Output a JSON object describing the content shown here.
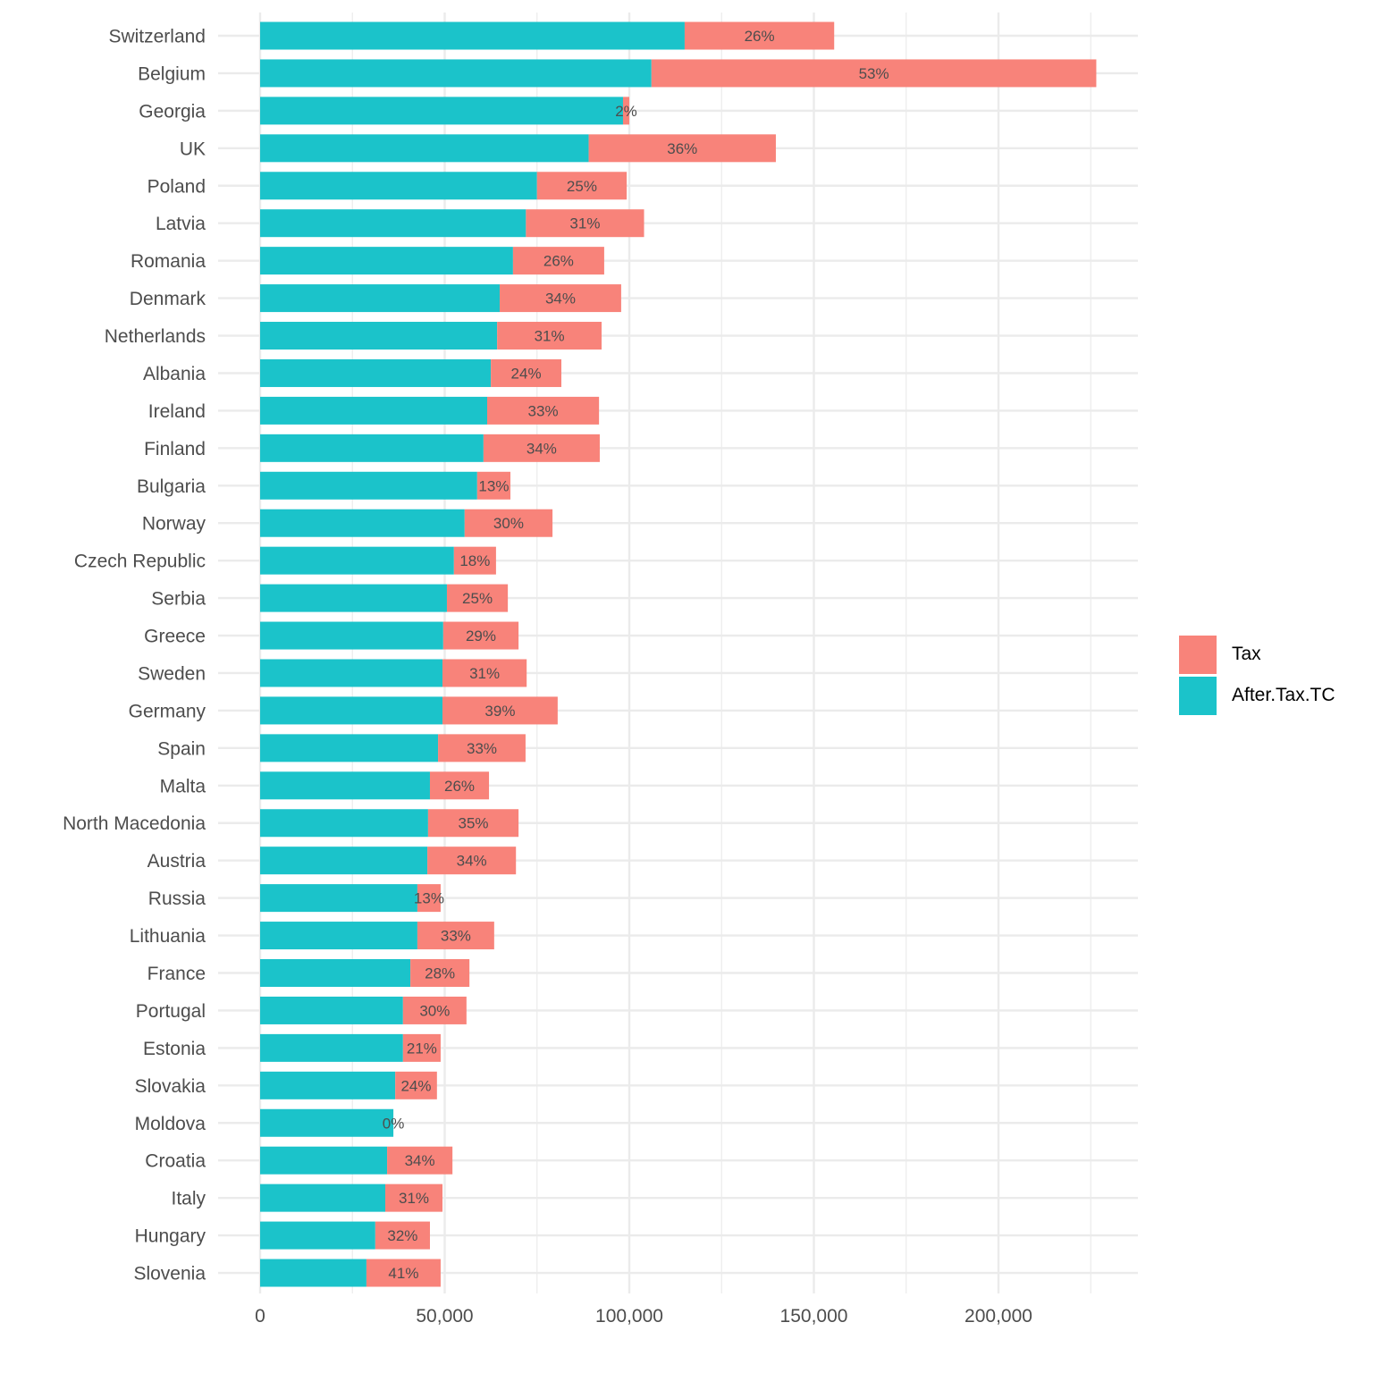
{
  "chart_data": {
    "type": "bar",
    "orientation": "horizontal",
    "stacked": true,
    "title": "",
    "xlabel": "",
    "ylabel": "",
    "xlim": [
      0,
      237000
    ],
    "x_ticks": [
      0,
      50000,
      100000,
      150000,
      200000
    ],
    "x_tick_labels": [
      "0",
      "50,000",
      "100,000",
      "150,000",
      "200,000"
    ],
    "grid": true,
    "legend_position": "right",
    "categories": [
      "Switzerland",
      "Belgium",
      "Georgia",
      "UK",
      "Poland",
      "Latvia",
      "Romania",
      "Denmark",
      "Netherlands",
      "Albania",
      "Ireland",
      "Finland",
      "Bulgaria",
      "Norway",
      "Czech Republic",
      "Serbia",
      "Greece",
      "Sweden",
      "Germany",
      "Spain",
      "Malta",
      "North Macedonia",
      "Austria",
      "Russia",
      "Lithuania",
      "France",
      "Portugal",
      "Estonia",
      "Slovakia",
      "Moldova",
      "Croatia",
      "Italy",
      "Hungary",
      "Slovenia"
    ],
    "series": [
      {
        "name": "After.Tax.TC",
        "color": "#1bc3ca",
        "values": [
          115000,
          106000,
          98300,
          89000,
          75000,
          72000,
          68500,
          64900,
          64200,
          62500,
          61500,
          60500,
          58800,
          55400,
          52500,
          50600,
          49600,
          49400,
          49400,
          48200,
          46000,
          45500,
          45300,
          42600,
          42600,
          40700,
          38700,
          38700,
          36600,
          36100,
          34400,
          33900,
          31200,
          28800
        ]
      },
      {
        "name": "Tax",
        "color": "#f8837a",
        "values": [
          40500,
          120500,
          1700,
          50700,
          24300,
          32000,
          24700,
          32900,
          28300,
          19100,
          30300,
          31500,
          9000,
          23800,
          11400,
          16500,
          20400,
          22800,
          31200,
          23700,
          16000,
          24500,
          24000,
          6300,
          20800,
          16000,
          17200,
          10200,
          11300,
          0,
          17700,
          15500,
          14800,
          20100
        ]
      }
    ],
    "data_labels": [
      "26%",
      "53%",
      "2%",
      "36%",
      "25%",
      "31%",
      "26%",
      "34%",
      "31%",
      "24%",
      "33%",
      "34%",
      "13%",
      "30%",
      "18%",
      "25%",
      "29%",
      "31%",
      "39%",
      "33%",
      "26%",
      "35%",
      "34%",
      "13%",
      "33%",
      "28%",
      "30%",
      "21%",
      "24%",
      "0%",
      "34%",
      "31%",
      "32%",
      "41%"
    ],
    "legend": [
      {
        "label": "Tax",
        "color": "#f8837a"
      },
      {
        "label": "After.Tax.TC",
        "color": "#1bc3ca"
      }
    ]
  }
}
